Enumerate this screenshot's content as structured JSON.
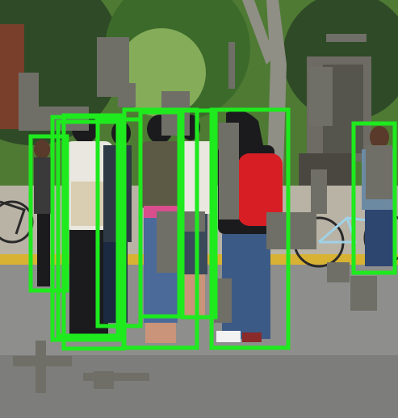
{
  "image": {
    "description_free": true
  },
  "colors": {
    "detection_box": "#1eea1e",
    "occluder": "#6f6f68",
    "road": "#8e8e8c",
    "road_dark": "#7d7d7b",
    "sidewalk": "#b9b3a6",
    "curb_yellow": "#d8b233",
    "foliage_dark": "#2f4a26",
    "foliage_mid": "#4f7a34",
    "foliage_light": "#9cc36a",
    "sky": "#e7ece9",
    "tree_trunk": "#8f8f85",
    "backpack_red": "#d81e25",
    "jeans": "#4b6a9a",
    "dark_clothes": "#1b1b1e",
    "vest_olive": "#5c5a45",
    "skin": "#c99479",
    "pink": "#d94f8e",
    "white_shirt": "#e9e7df"
  },
  "detections": [
    {
      "label": "person",
      "id": 1
    },
    {
      "label": "person",
      "id": 2
    },
    {
      "label": "person",
      "id": 3
    },
    {
      "label": "person",
      "id": 4
    },
    {
      "label": "person",
      "id": 5
    },
    {
      "label": "person",
      "id": 6
    },
    {
      "label": "person",
      "id": 7
    },
    {
      "label": "person",
      "id": 8
    },
    {
      "label": "person",
      "id": 9
    },
    {
      "label": "person",
      "id": 10
    }
  ],
  "occluder_count": 20
}
